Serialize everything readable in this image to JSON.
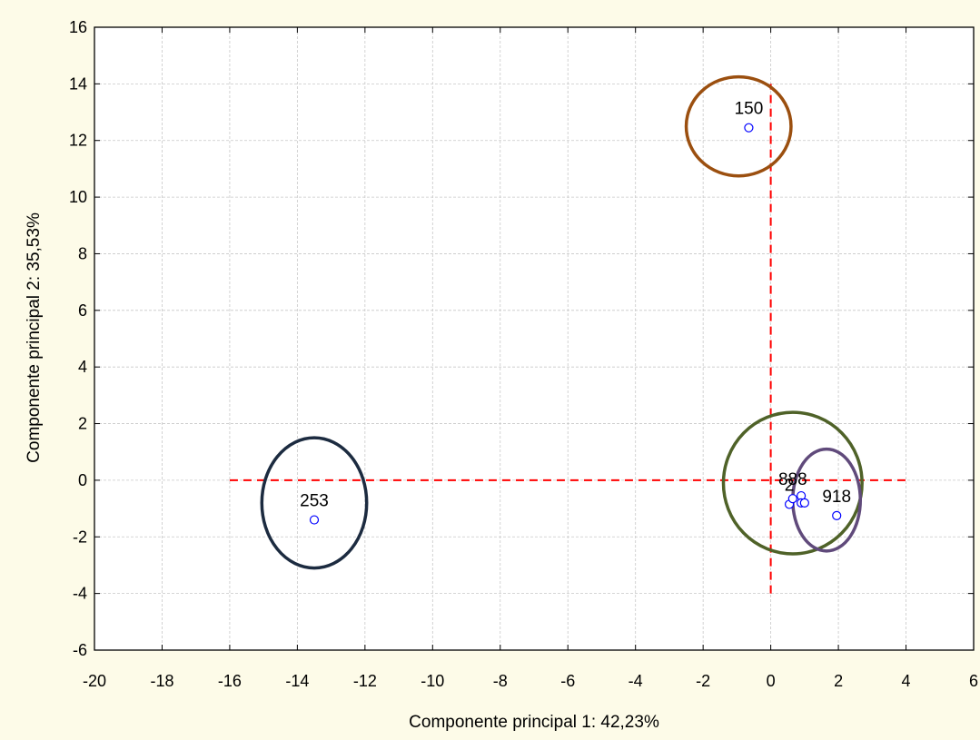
{
  "chart_data": {
    "type": "scatter",
    "title": "",
    "xlabel": "Componente principal 1: 42,23%",
    "ylabel": "Componente principal 2: 35,53%",
    "xlim": [
      -20,
      6
    ],
    "ylim": [
      -6,
      16
    ],
    "xticks": [
      "-20",
      "-18",
      "-16",
      "-14",
      "-12",
      "-10",
      "-8",
      "-6",
      "-4",
      "-2",
      "0",
      "2",
      "4",
      "6"
    ],
    "yticks": [
      "-6",
      "-4",
      "-2",
      "0",
      "2",
      "4",
      "6",
      "8",
      "10",
      "12",
      "14",
      "16"
    ],
    "grid": true,
    "colors": {
      "background": "#fdfbe8",
      "plot_background": "#ffffff",
      "points": "#0000ff",
      "reference_lines": "#ff0000",
      "grid": "#c8c8c8"
    },
    "points": [
      {
        "x": -0.65,
        "y": 12.45,
        "label": "150"
      },
      {
        "x": -13.5,
        "y": -1.4,
        "label": "253"
      },
      {
        "x": 1.95,
        "y": -1.25,
        "label": "918"
      },
      {
        "x": 0.55,
        "y": -0.85,
        "label": "2"
      },
      {
        "x": 0.65,
        "y": -0.65,
        "label": "888"
      },
      {
        "x": 0.9,
        "y": -0.55,
        "label": ""
      },
      {
        "x": 0.9,
        "y": -0.8,
        "label": ""
      },
      {
        "x": 1.0,
        "y": -0.8,
        "label": ""
      }
    ],
    "reference_lines": [
      {
        "orientation": "horizontal",
        "y": 0,
        "x_from": -16,
        "x_to": 4
      },
      {
        "orientation": "vertical",
        "x": 0,
        "y_from": -4,
        "y_to": 14
      }
    ],
    "ellipses": [
      {
        "cx": -0.95,
        "cy": 12.5,
        "rx": 1.55,
        "ry": 1.75,
        "color": "#9b4f0f"
      },
      {
        "cx": -13.5,
        "cy": -0.8,
        "rx": 1.55,
        "ry": 2.3,
        "color": "#1c2b40"
      },
      {
        "cx": 0.65,
        "cy": -0.1,
        "rx": 2.05,
        "ry": 2.5,
        "color": "#4f6228"
      },
      {
        "cx": 1.65,
        "cy": -0.7,
        "rx": 1.0,
        "ry": 1.8,
        "color": "#604a7b"
      }
    ]
  }
}
